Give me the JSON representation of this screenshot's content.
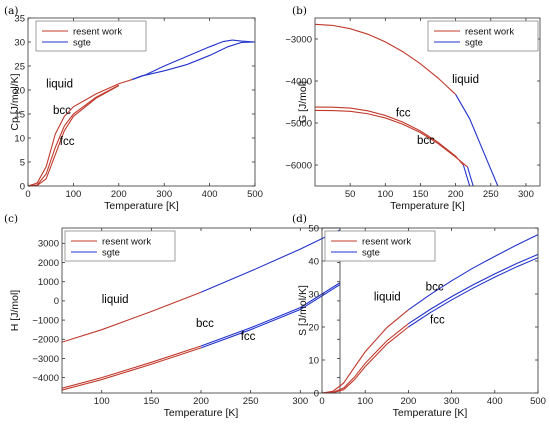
{
  "colors": {
    "present": "#c0392b",
    "sgte": "#2233cc"
  },
  "chart_data": [
    {
      "letter": "(a)",
      "type": "line",
      "xlabel": "Temperature [K]",
      "ylabel": "Cp [J/mol/K]",
      "xlim": [
        0,
        500
      ],
      "ylim": [
        0,
        35
      ],
      "xticks": [
        0,
        100,
        200,
        300,
        400,
        500
      ],
      "yticks": [
        0,
        5,
        10,
        15,
        20,
        25,
        30,
        35
      ],
      "legend": [
        "resent work",
        "sgte"
      ],
      "legend_position": "top-left",
      "annotations": [
        {
          "text": "liquid",
          "x": 40,
          "y": 20.5
        },
        {
          "text": "bcc",
          "x": 55,
          "y": 15
        },
        {
          "text": "fcc",
          "x": 70,
          "y": 8.5
        }
      ],
      "series": [
        {
          "name": "resent work",
          "color_key": "present",
          "x": [
            0,
            20,
            40,
            60,
            80,
            100,
            150,
            200,
            230
          ],
          "y": [
            0,
            0.6,
            4,
            10.8,
            14.5,
            16.5,
            19.2,
            21.3,
            22.2
          ]
        },
        {
          "color_key": "present",
          "x": [
            0,
            20,
            40,
            60,
            80,
            100,
            150,
            200
          ],
          "y": [
            0,
            0.2,
            2.5,
            8,
            12.5,
            15,
            18.5,
            21
          ]
        },
        {
          "color_key": "present",
          "x": [
            0,
            20,
            40,
            60,
            80,
            100,
            150,
            200
          ],
          "y": [
            0,
            0.1,
            1.5,
            6.5,
            11.5,
            14.5,
            18.3,
            20.9
          ]
        },
        {
          "name": "sgte",
          "color_key": "sgte",
          "x": [
            230,
            250,
            300,
            350,
            400,
            440,
            470,
            500
          ],
          "y": [
            22.2,
            22.9,
            24,
            25.3,
            27.2,
            29,
            29.9,
            30
          ]
        },
        {
          "color_key": "sgte",
          "x": [
            230,
            260,
            300,
            350,
            400,
            430,
            450,
            470,
            500
          ],
          "y": [
            22.2,
            23.2,
            25,
            27,
            29,
            30.1,
            30.4,
            30.2,
            30
          ]
        }
      ]
    },
    {
      "letter": "(b)",
      "type": "line",
      "xlabel": "Temperature [K]",
      "ylabel": "G [J/mol]",
      "xlim": [
        0,
        320
      ],
      "ylim": [
        -6500,
        -2500
      ],
      "xticks": [
        50,
        100,
        150,
        200,
        250,
        300
      ],
      "yticks": [
        -3000,
        -4000,
        -5000,
        -6000
      ],
      "legend": [
        "resent work",
        "sgte"
      ],
      "legend_position": "top-right",
      "annotations": [
        {
          "text": "liquid",
          "x": 195,
          "y": -4050
        },
        {
          "text": "fcc",
          "x": 115,
          "y": -4850
        },
        {
          "text": "bcc",
          "x": 145,
          "y": -5500
        }
      ],
      "series": [
        {
          "name": "resent work",
          "color_key": "present",
          "x": [
            0,
            25,
            50,
            75,
            100,
            125,
            150,
            175,
            200
          ],
          "y": [
            -2650,
            -2676,
            -2754,
            -2885,
            -3068,
            -3303,
            -3590,
            -3929,
            -4320
          ]
        },
        {
          "color_key": "present",
          "x": [
            0,
            25,
            50,
            75,
            100,
            125,
            150,
            175,
            200,
            211
          ],
          "y": [
            -4620,
            -4623,
            -4645,
            -4710,
            -4820,
            -4980,
            -5190,
            -5460,
            -5790,
            -6000
          ]
        },
        {
          "color_key": "present",
          "x": [
            0,
            25,
            50,
            75,
            100,
            125,
            150,
            175,
            200,
            217
          ],
          "y": [
            -4700,
            -4703,
            -4722,
            -4780,
            -4880,
            -5030,
            -5230,
            -5490,
            -5810,
            -6050
          ]
        },
        {
          "name": "sgte",
          "color_key": "sgte",
          "x": [
            200,
            220,
            240,
            260
          ],
          "y": [
            -4320,
            -4900,
            -5700,
            -6500
          ]
        },
        {
          "color_key": "sgte",
          "x": [
            211,
            220
          ],
          "y": [
            -6000,
            -6500
          ]
        },
        {
          "color_key": "sgte",
          "x": [
            217,
            225
          ],
          "y": [
            -6050,
            -6500
          ]
        }
      ]
    },
    {
      "letter": "(c)",
      "type": "line",
      "xlabel": "Temperature [K]",
      "ylabel": "H [J/mol]",
      "xlim": [
        60,
        340
      ],
      "ylim": [
        -4800,
        3800
      ],
      "xticks": [
        100,
        150,
        200,
        250,
        300
      ],
      "yticks": [
        -4000,
        -3000,
        -2000,
        -1000,
        0,
        1000,
        2000,
        3000
      ],
      "legend": [
        "resent work",
        "sgte"
      ],
      "legend_position": "top-left",
      "annotations": [
        {
          "text": "liquid",
          "x": 100,
          "y": -100
        },
        {
          "text": "bcc",
          "x": 195,
          "y": -1350
        },
        {
          "text": "fcc",
          "x": 240,
          "y": -2050
        }
      ],
      "series": [
        {
          "name": "resent work",
          "color_key": "present",
          "x": [
            60,
            100,
            150,
            200
          ],
          "y": [
            -2150,
            -1500,
            -550,
            450
          ]
        },
        {
          "color_key": "present",
          "x": [
            60,
            100,
            150,
            200
          ],
          "y": [
            -4550,
            -4000,
            -3200,
            -2350
          ]
        },
        {
          "color_key": "present",
          "x": [
            60,
            100,
            150,
            200
          ],
          "y": [
            -4650,
            -4100,
            -3300,
            -2450
          ]
        },
        {
          "name": "sgte",
          "color_key": "sgte",
          "x": [
            200,
            250,
            300,
            340
          ],
          "y": [
            450,
            1550,
            2700,
            3700
          ]
        },
        {
          "color_key": "sgte",
          "x": [
            200,
            250,
            300,
            340
          ],
          "y": [
            -2350,
            -1400,
            -350,
            950
          ]
        },
        {
          "color_key": "sgte",
          "x": [
            200,
            250,
            300,
            340
          ],
          "y": [
            -2450,
            -1500,
            -450,
            850
          ]
        }
      ]
    },
    {
      "letter": "(d)",
      "type": "line",
      "xlabel": "Temperature [K]",
      "ylabel": "S [J/mol/K]",
      "xlim": [
        0,
        500
      ],
      "ylim": [
        0,
        50
      ],
      "xticks": [
        0,
        100,
        200,
        300,
        400,
        500
      ],
      "yticks": [
        0,
        10,
        20,
        30,
        40,
        50
      ],
      "legend": [
        "resent work",
        "sgte"
      ],
      "legend_position": "top-left",
      "annotations": [
        {
          "text": "liquid",
          "x": 120,
          "y": 28
        },
        {
          "text": "bcc",
          "x": 240,
          "y": 31
        },
        {
          "text": "fcc",
          "x": 250,
          "y": 21
        }
      ],
      "series": [
        {
          "name": "resent work",
          "color_key": "present",
          "x": [
            0,
            25,
            50,
            75,
            100,
            150,
            200
          ],
          "y": [
            0,
            0.5,
            3,
            7.8,
            12.5,
            19.8,
            25.2
          ]
        },
        {
          "color_key": "present",
          "x": [
            0,
            25,
            50,
            75,
            100,
            150,
            200
          ],
          "y": [
            0,
            0.2,
            1.5,
            4.8,
            9,
            15.8,
            21
          ]
        },
        {
          "color_key": "present",
          "x": [
            0,
            25,
            50,
            75,
            100,
            150,
            200
          ],
          "y": [
            0,
            0.1,
            1,
            4,
            8,
            14.8,
            20
          ]
        },
        {
          "name": "sgte",
          "color_key": "sgte",
          "x": [
            200,
            250,
            300,
            350,
            400,
            450,
            500
          ],
          "y": [
            25.2,
            29.8,
            34,
            37.9,
            41.4,
            44.8,
            48
          ]
        },
        {
          "color_key": "sgte",
          "x": [
            200,
            250,
            300,
            350,
            400,
            450,
            500
          ],
          "y": [
            21,
            25.3,
            29.2,
            32.8,
            36.1,
            39.2,
            42
          ]
        },
        {
          "color_key": "sgte",
          "x": [
            200,
            250,
            300,
            350,
            400,
            450,
            500
          ],
          "y": [
            20,
            24.3,
            28.2,
            31.8,
            35.1,
            38.2,
            41
          ]
        }
      ]
    }
  ]
}
